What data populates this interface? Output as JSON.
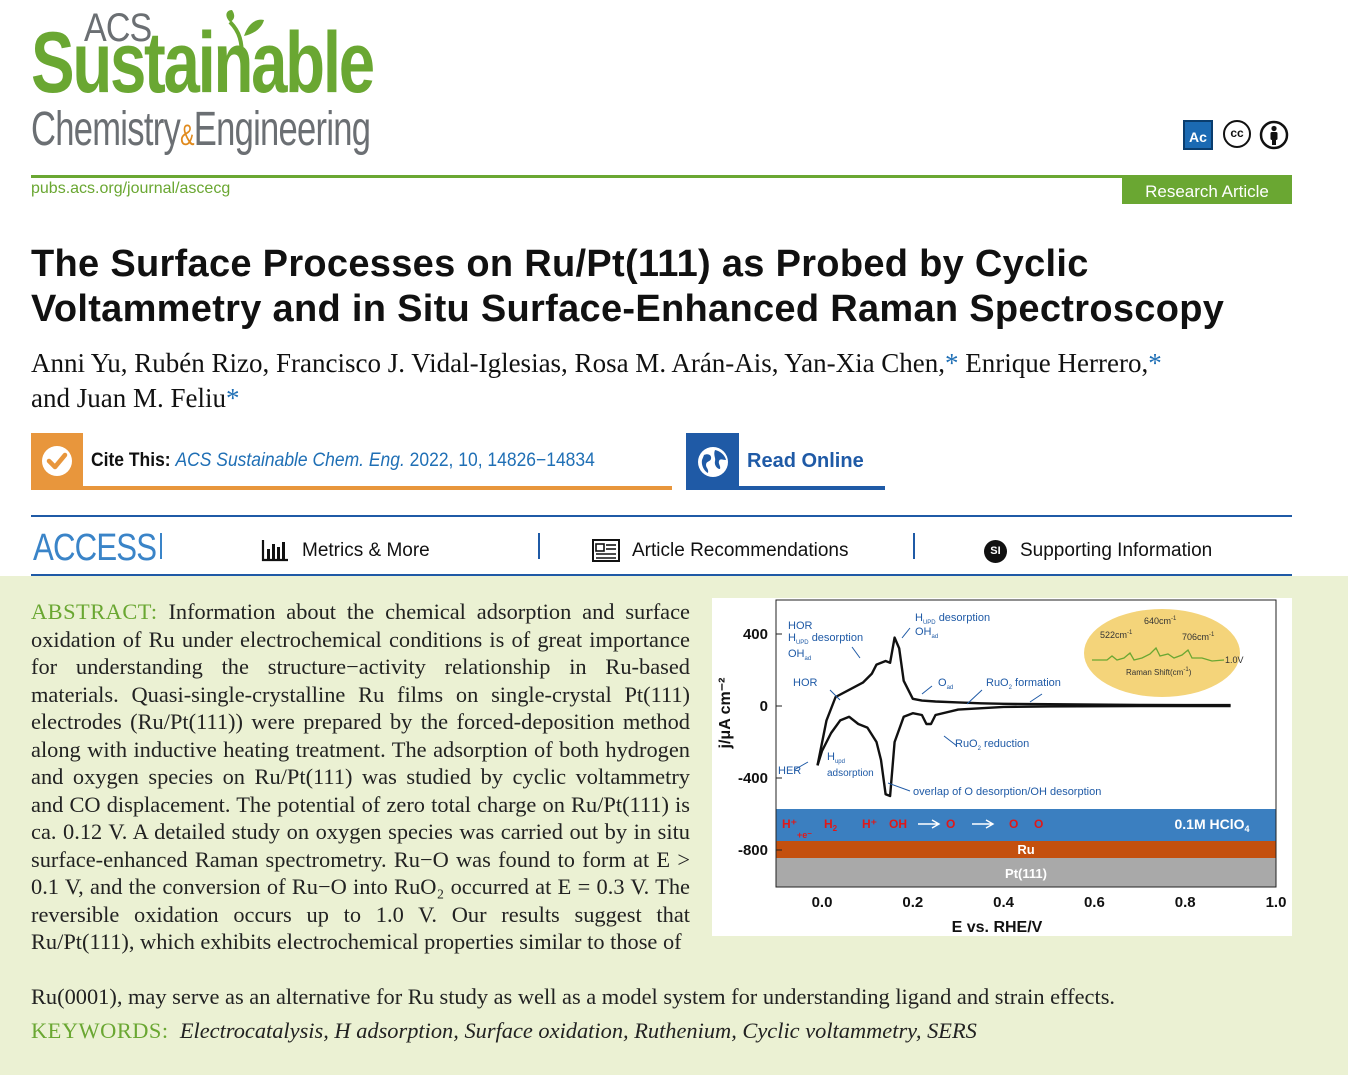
{
  "header": {
    "logo_acs": "ACS",
    "logo_sustainable": "Sustainable",
    "logo_chemistry": "Chemistry",
    "logo_amp": "&",
    "logo_engineering": "Engineering",
    "journal_url": "pubs.acs.org/journal/ascecg",
    "article_type": "Research Article",
    "license_icons": [
      "acs-icon",
      "cc-icon",
      "by-icon"
    ],
    "brand_color": "#6aa732"
  },
  "article": {
    "title": "The Surface Processes on Ru/Pt(111) as Probed by Cyclic Voltammetry and in Situ Surface-Enhanced Raman Spectroscopy",
    "authors_line1": "Anni Yu, Rubén Rizo, Francisco J. Vidal-Iglesias, Rosa M. Arán-Ais, Yan-Xia Chen,",
    "author_enrique": "Enrique Herrero,",
    "authors_line2": "and Juan M. Feliu",
    "corresponding_mark": "*"
  },
  "cite": {
    "label": "Cite This:",
    "journal": "ACS Sustainable Chem. Eng.",
    "details": "2022, 10, 14826−14834",
    "read_online": "Read Online"
  },
  "nav": {
    "access": "ACCESS",
    "metrics": "Metrics & More",
    "recommendations": "Article Recommendations",
    "si_icon": "SI",
    "supporting": "Supporting Information"
  },
  "abstract": {
    "label": "ABSTRACT:",
    "text_col": "Information about the chemical adsorption and surface oxidation of Ru under electrochemical conditions is of great importance for understanding the structure−activity relationship in Ru-based materials. Quasi-single-crystalline Ru films on single-crystal Pt(111) electrodes (Ru/Pt(111)) were prepared by the forced-deposition method along with inductive heating treatment. The adsorption of both hydrogen and oxygen species on Ru/Pt(111) was studied by cyclic voltammetry and CO displacement. The potential of zero total charge on Ru/Pt(111) is ca. 0.12 V. A detailed study on oxygen species was carried out by in situ surface-enhanced Raman spectrometry. Ru−O was found to form at E > 0.1 V, and the conversion of Ru−O into RuO₂ occurred at E = 0.3 V. The reversible oxidation occurs up to 1.0 V. Our results suggest that Ru/Pt(111), which exhibits electrochemical properties similar to those of",
    "text_full": "Ru(0001), may serve as an alternative for Ru study as well as a model system for understanding ligand and strain effects.",
    "keywords_label": "KEYWORDS:",
    "keywords": "Electrocatalysis, H adsorption, Surface oxidation, Ruthenium, Cyclic voltammetry, SERS"
  },
  "chart_data": {
    "type": "line",
    "xlabel": "E vs. RHE/V",
    "ylabel": "j/μA cm⁻²",
    "xlim": [
      0.0,
      1.0
    ],
    "ylim": [
      -1000,
      500
    ],
    "x_ticks": [
      "0.0",
      "0.2",
      "0.4",
      "0.6",
      "0.8",
      "1.0"
    ],
    "y_ticks": [
      "400",
      "0",
      "-400",
      "-800"
    ],
    "series": [
      {
        "x": [
          -0.01,
          0.01,
          0.03,
          0.06,
          0.09,
          0.11,
          0.12,
          0.14,
          0.15,
          0.16,
          0.17,
          0.18,
          0.2,
          0.22,
          0.25,
          0.3,
          0.35,
          0.4,
          0.5,
          0.6,
          0.7,
          0.8,
          0.9
        ],
        "y": [
          -330,
          -80,
          50,
          90,
          130,
          180,
          230,
          250,
          240,
          380,
          320,
          140,
          40,
          30,
          25,
          20,
          15,
          12,
          10,
          8,
          6,
          5,
          5
        ]
      },
      {
        "x": [
          0.9,
          0.7,
          0.5,
          0.4,
          0.3,
          0.25,
          0.24,
          0.23,
          0.22,
          0.2,
          0.18,
          0.16,
          0.15,
          0.14,
          0.13,
          0.12,
          0.1,
          0.08,
          0.06,
          0.04,
          0.02,
          0.0,
          -0.01
        ],
        "y": [
          0,
          0,
          -2,
          -5,
          -20,
          -50,
          -100,
          -100,
          -50,
          -40,
          -60,
          -200,
          -500,
          -490,
          -300,
          -200,
          -120,
          -100,
          -60,
          -80,
          -150,
          -250,
          -330
        ]
      }
    ],
    "annotations": [
      "HOR",
      "H",
      "UPD",
      "desorption",
      "OH",
      "ad",
      "desorption",
      "OH",
      "ad",
      "HOR",
      "O",
      "ad",
      "RuO",
      "2",
      "formation",
      "RuO",
      "2",
      "reduction",
      "HER",
      "H",
      "upd",
      "adsorption",
      "overlap of O desorption/OH desorption"
    ],
    "inset": {
      "labels": [
        "522cm",
        "640cm",
        "706cm",
        "1.0V",
        "Raman Shift(cm",
        ")"
      ],
      "sup": "-1"
    },
    "schematic": {
      "electrolyte": "0.1M HClO",
      "electrolyte_sub": "4",
      "film": "Ru",
      "substrate": "Pt(111)",
      "species": [
        "H⁺",
        "+e⁻",
        "H",
        "2",
        "H⁺",
        "OH",
        "O",
        "O",
        "O"
      ]
    },
    "colors": {
      "electrolyte": "#3b7fc0",
      "film": "#c4500e",
      "substrate": "#a9a9a9",
      "inset": "#f4d47a",
      "annotation": "#1f5aa6",
      "species": "#e01818"
    }
  }
}
